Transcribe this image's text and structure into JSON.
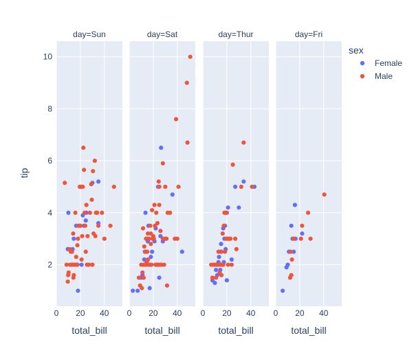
{
  "chart_data": {
    "type": "scatter",
    "facet_by": "day",
    "xlabel": "total_bill",
    "ylabel": "tip",
    "xlim": [
      0,
      55
    ],
    "ylim": [
      0.4,
      10.6
    ],
    "x_ticks": [
      0,
      20,
      40
    ],
    "y_ticks": [
      2,
      4,
      6,
      8,
      10
    ],
    "grid": true,
    "legend": {
      "title": "sex",
      "position": "right",
      "entries": [
        {
          "name": "Female",
          "color": "#636efa"
        },
        {
          "name": "Male",
          "color": "#ef553b"
        }
      ]
    },
    "facets": [
      {
        "label": "day=Sun",
        "series": [
          {
            "name": "Female",
            "color": "#636efa",
            "points": [
              [
                10,
                4.0
              ],
              [
                9.5,
                2.6
              ],
              [
                13.5,
                2.6
              ],
              [
                16.5,
                3.5
              ],
              [
                18,
                1.0
              ],
              [
                17.5,
                2.0
              ],
              [
                20,
                3.5
              ],
              [
                22,
                3.9
              ],
              [
                23,
                3.5
              ],
              [
                24.5,
                3.7
              ],
              [
                25,
                4.0
              ],
              [
                30,
                5.15
              ],
              [
                35,
                5.2
              ],
              [
                35,
                3.6
              ],
              [
                14.5,
                3.0
              ],
              [
                21,
                2.0
              ],
              [
                12,
                2.0
              ],
              [
                30,
                2.0
              ]
            ]
          },
          {
            "name": "Male",
            "color": "#ef553b",
            "points": [
              [
                7,
                5.15
              ],
              [
                8.5,
                2.0
              ],
              [
                9.5,
                1.35
              ],
              [
                9.8,
                1.6
              ],
              [
                10.2,
                1.7
              ],
              [
                11,
                2.6
              ],
              [
                11.5,
                2.0
              ],
              [
                12,
                2.5
              ],
              [
                12.5,
                2.0
              ],
              [
                13,
                2.5
              ],
              [
                13.5,
                2.0
              ],
              [
                14,
                3.2
              ],
              [
                14.2,
                1.5
              ],
              [
                14.5,
                1.6
              ],
              [
                15,
                2.0
              ],
              [
                15.3,
                2.0
              ],
              [
                15.8,
                4.0
              ],
              [
                16,
                2.0
              ],
              [
                16.5,
                2.3
              ],
              [
                17,
                2.0
              ],
              [
                17.5,
                2.75
              ],
              [
                18,
                3.0
              ],
              [
                18.5,
                3.5
              ],
              [
                19,
                3.5
              ],
              [
                19.5,
                5.0
              ],
              [
                20,
                3.5
              ],
              [
                20.5,
                5.0
              ],
              [
                21,
                2.2
              ],
              [
                21.5,
                3.1
              ],
              [
                22,
                5.0
              ],
              [
                22.5,
                6.5
              ],
              [
                23,
                5.65
              ],
              [
                23.5,
                4.0
              ],
              [
                24,
                3.5
              ],
              [
                24.5,
                2.5
              ],
              [
                25,
                4.3
              ],
              [
                25.5,
                2.0
              ],
              [
                26,
                3.1
              ],
              [
                27,
                2.0
              ],
              [
                28,
                4.0
              ],
              [
                29,
                5.1
              ],
              [
                30,
                2.0
              ],
              [
                30.5,
                5.6
              ],
              [
                31,
                3.2
              ],
              [
                32,
                6.0
              ],
              [
                32.5,
                3.1
              ],
              [
                33,
                4.0
              ],
              [
                34,
                4.0
              ],
              [
                35,
                3.5
              ],
              [
                38,
                4.0
              ],
              [
                40,
                3.0
              ],
              [
                45,
                3.5
              ],
              [
                48,
                5.0
              ],
              [
                29.5,
                4.5
              ]
            ]
          }
        ]
      },
      {
        "label": "day=Sat",
        "series": [
          {
            "name": "Female",
            "color": "#636efa",
            "points": [
              [
                3,
                1.0
              ],
              [
                7,
                1.0
              ],
              [
                10,
                1.5
              ],
              [
                11,
                1.6
              ],
              [
                12,
                2.0
              ],
              [
                12.5,
                2.2
              ],
              [
                13,
                2.5
              ],
              [
                13.5,
                4.0
              ],
              [
                14,
                2.0
              ],
              [
                15,
                3.0
              ],
              [
                16,
                3.5
              ],
              [
                17,
                2.0
              ],
              [
                18,
                2.3
              ],
              [
                19,
                2.5
              ],
              [
                20,
                3.0
              ],
              [
                21,
                2.9
              ],
              [
                22,
                3.4
              ],
              [
                23,
                2.0
              ],
              [
                24,
                5.0
              ],
              [
                25,
                1.5
              ],
              [
                26,
                3.1
              ],
              [
                26.5,
                6.5
              ],
              [
                28,
                2.9
              ],
              [
                36,
                4.7
              ],
              [
                44,
                2.5
              ],
              [
                17,
                1.1
              ],
              [
                15.5,
                2.9
              ],
              [
                22,
                2.0
              ]
            ]
          },
          {
            "name": "Male",
            "color": "#ef553b",
            "points": [
              [
                8,
                1.5
              ],
              [
                9,
                1.2
              ],
              [
                10,
                2.0
              ],
              [
                10.5,
                1.1
              ],
              [
                11,
                1.7
              ],
              [
                11.5,
                3.4
              ],
              [
                12,
                2.0
              ],
              [
                12.5,
                2.7
              ],
              [
                13,
                2.0
              ],
              [
                13.5,
                2.5
              ],
              [
                14,
                3.0
              ],
              [
                14.5,
                2.1
              ],
              [
                15,
                2.5
              ],
              [
                15.5,
                3.2
              ],
              [
                16,
                2.0
              ],
              [
                16.5,
                3.0
              ],
              [
                17,
                2.0
              ],
              [
                17.5,
                3.5
              ],
              [
                18,
                3.2
              ],
              [
                18.5,
                2.0
              ],
              [
                19,
                4.1
              ],
              [
                19.5,
                3.0
              ],
              [
                20,
                3.0
              ],
              [
                20.5,
                3.0
              ],
              [
                21,
                4.3
              ],
              [
                21.5,
                3.5
              ],
              [
                22,
                2.0
              ],
              [
                22.5,
                4.0
              ],
              [
                23,
                2.0
              ],
              [
                23.5,
                3.6
              ],
              [
                24,
                2.0
              ],
              [
                24.5,
                5.2
              ],
              [
                25,
                4.3
              ],
              [
                25.5,
                2.0
              ],
              [
                26,
                3.3
              ],
              [
                27,
                2.0
              ],
              [
                28,
                5.9
              ],
              [
                29,
                2.0
              ],
              [
                30,
                5.0
              ],
              [
                31,
                3.0
              ],
              [
                31.5,
                1.2
              ],
              [
                32,
                4.0
              ],
              [
                34,
                4.0
              ],
              [
                38,
                3.0
              ],
              [
                39,
                7.6
              ],
              [
                40,
                3.0
              ],
              [
                41,
                5.0
              ],
              [
                48,
                9.0
              ],
              [
                48.5,
                6.7
              ],
              [
                50.8,
                10.0
              ],
              [
                12,
                1.5
              ],
              [
                15.5,
                2.2
              ],
              [
                18,
                2.8
              ],
              [
                20,
                3.1
              ],
              [
                25,
                5.0
              ],
              [
                28,
                3.0
              ],
              [
                30,
                3.0
              ]
            ]
          }
        ]
      },
      {
        "label": "day=Thur",
        "series": [
          {
            "name": "Female",
            "color": "#636efa",
            "points": [
              [
                8,
                1.4
              ],
              [
                10,
                1.3
              ],
              [
                11,
                1.8
              ],
              [
                11.5,
                2.0
              ],
              [
                12,
                1.6
              ],
              [
                12.5,
                2.0
              ],
              [
                13,
                2.1
              ],
              [
                13.5,
                2.3
              ],
              [
                14,
                2.0
              ],
              [
                14.5,
                1.8
              ],
              [
                15,
                2.5
              ],
              [
                15.2,
                2.8
              ],
              [
                15.5,
                2.5
              ],
              [
                16,
                2.0
              ],
              [
                16.5,
                2.0
              ],
              [
                17,
                3.4
              ],
              [
                17.5,
                2.1
              ],
              [
                18,
                3.0
              ],
              [
                18.5,
                3.5
              ],
              [
                19,
                2.6
              ],
              [
                19.5,
                4.0
              ],
              [
                20,
                1.4
              ],
              [
                20.5,
                3.0
              ],
              [
                21,
                4.2
              ],
              [
                22,
                3.0
              ],
              [
                24,
                2.2
              ],
              [
                27,
                5.0
              ],
              [
                30,
                4.2
              ],
              [
                34,
                5.2
              ],
              [
                43,
                5.0
              ]
            ]
          },
          {
            "name": "Male",
            "color": "#ef553b",
            "points": [
              [
                7,
                2.0
              ],
              [
                8,
                1.5
              ],
              [
                9,
                2.0
              ],
              [
                10,
                2.0
              ],
              [
                11,
                1.5
              ],
              [
                11.5,
                2.0
              ],
              [
                12,
                2.0
              ],
              [
                12.5,
                2.0
              ],
              [
                13,
                2.5
              ],
              [
                13.5,
                2.0
              ],
              [
                14,
                1.7
              ],
              [
                14.5,
                2.0
              ],
              [
                15,
                2.5
              ],
              [
                15.5,
                1.6
              ],
              [
                16,
                2.0
              ],
              [
                16.5,
                3.2
              ],
              [
                17,
                2.0
              ],
              [
                17.5,
                3.5
              ],
              [
                18,
                4.0
              ],
              [
                18.5,
                2.5
              ],
              [
                19,
                4.0
              ],
              [
                19.5,
                3.0
              ],
              [
                20,
                4.0
              ],
              [
                20.5,
                3.0
              ],
              [
                21,
                2.0
              ],
              [
                22,
                3.0
              ],
              [
                23,
                3.0
              ],
              [
                24,
                2.0
              ],
              [
                25,
                5.85
              ],
              [
                27,
                3.0
              ],
              [
                28,
                2.6
              ],
              [
                32,
                5.0
              ],
              [
                34,
                6.7
              ],
              [
                41,
                5.0
              ]
            ]
          }
        ]
      },
      {
        "label": "day=Fri",
        "series": [
          {
            "name": "Female",
            "color": "#636efa",
            "points": [
              [
                5.8,
                1.0
              ],
              [
                9,
                1.9
              ],
              [
                10,
                2.0
              ],
              [
                11,
                2.5
              ],
              [
                13,
                3.5
              ],
              [
                14,
                3.0
              ],
              [
                15,
                2.5
              ],
              [
                16,
                4.3
              ],
              [
                16.5,
                3.0
              ],
              [
                22,
                3.2
              ]
            ]
          },
          {
            "name": "Male",
            "color": "#ef553b",
            "points": [
              [
                12,
                1.5
              ],
              [
                13,
                1.6
              ],
              [
                13.5,
                2.2
              ],
              [
                15,
                3.0
              ],
              [
                21,
                3.0
              ],
              [
                22,
                3.5
              ],
              [
                27,
                4.0
              ],
              [
                29,
                3.0
              ],
              [
                40.5,
                4.7
              ],
              [
                12.5,
                2.5
              ]
            ]
          }
        ]
      }
    ]
  }
}
